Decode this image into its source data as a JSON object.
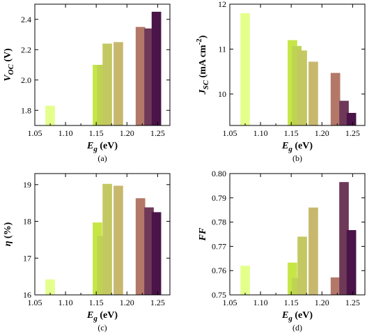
{
  "chart_data": [
    {
      "type": "bar",
      "panel_label": "(a)",
      "xlabel": "E",
      "xlabel_sub": "g",
      "xlabel_unit": " (eV)",
      "ylabel": "V",
      "ylabel_sub": "OC",
      "ylabel_unit": " (V)",
      "xlim": [
        1.05,
        1.27
      ],
      "ylim": [
        1.7,
        2.5
      ],
      "xticks": [
        "1.05",
        "1.10",
        "1.15",
        "1.20",
        "1.25"
      ],
      "yticks": [
        "1.8",
        "2.0",
        "2.2",
        "2.4"
      ],
      "grid": false,
      "bars": [
        {
          "x": 1.075,
          "y": 1.83,
          "color": "#e4ff8c"
        },
        {
          "x": 1.152,
          "y": 2.1,
          "color": "#c6e646"
        },
        {
          "x": 1.159,
          "y": 2.1,
          "color": "#bdd452"
        },
        {
          "x": 1.168,
          "y": 2.24,
          "color": "#c4c862"
        },
        {
          "x": 1.186,
          "y": 2.25,
          "color": "#c7b86e"
        },
        {
          "x": 1.222,
          "y": 2.35,
          "color": "#b37868"
        },
        {
          "x": 1.236,
          "y": 2.34,
          "color": "#6e3858"
        },
        {
          "x": 1.248,
          "y": 2.45,
          "color": "#4a1448"
        }
      ]
    },
    {
      "type": "bar",
      "panel_label": "(b)",
      "xlabel": "E",
      "xlabel_sub": "g",
      "xlabel_unit": " (eV)",
      "ylabel": "J",
      "ylabel_sub": "SC",
      "ylabel_unit": "  (mA cm",
      "ylabel_sup": "-2",
      "ylabel_close": ")",
      "xlim": [
        1.05,
        1.27
      ],
      "ylim": [
        9.3,
        12.0
      ],
      "xticks": [
        "1.05",
        "1.10",
        "1.15",
        "1.20",
        "1.25"
      ],
      "yticks": [
        "10",
        "11",
        "12"
      ],
      "grid": false,
      "bars": [
        {
          "x": 1.075,
          "y": 11.8,
          "color": "#e4ff8c"
        },
        {
          "x": 1.152,
          "y": 11.2,
          "color": "#c6e646"
        },
        {
          "x": 1.159,
          "y": 11.07,
          "color": "#bdd452"
        },
        {
          "x": 1.168,
          "y": 10.97,
          "color": "#c4c862"
        },
        {
          "x": 1.186,
          "y": 10.72,
          "color": "#c7b86e"
        },
        {
          "x": 1.222,
          "y": 10.47,
          "color": "#b37868"
        },
        {
          "x": 1.236,
          "y": 9.85,
          "color": "#6e3858"
        },
        {
          "x": 1.248,
          "y": 9.58,
          "color": "#4a1448"
        }
      ]
    },
    {
      "type": "bar",
      "panel_label": "(c)",
      "xlabel": "E",
      "xlabel_sub": "g",
      "xlabel_unit": " (eV)",
      "ylabel": "η",
      "ylabel_sub": "",
      "ylabel_unit": " (%)",
      "xlim": [
        1.05,
        1.27
      ],
      "ylim": [
        16.0,
        19.3
      ],
      "xticks": [
        "1.05",
        "1.10",
        "1.15",
        "1.20",
        "1.25"
      ],
      "yticks": [
        "16",
        "17",
        "18",
        "19"
      ],
      "grid": false,
      "bars": [
        {
          "x": 1.075,
          "y": 16.42,
          "color": "#e4ff8c"
        },
        {
          "x": 1.152,
          "y": 17.97,
          "color": "#c6e646"
        },
        {
          "x": 1.159,
          "y": 17.6,
          "color": "#bdd452"
        },
        {
          "x": 1.168,
          "y": 19.02,
          "color": "#c4c862"
        },
        {
          "x": 1.186,
          "y": 18.97,
          "color": "#c7b86e"
        },
        {
          "x": 1.222,
          "y": 18.63,
          "color": "#b37868"
        },
        {
          "x": 1.236,
          "y": 18.38,
          "color": "#6e3858"
        },
        {
          "x": 1.248,
          "y": 18.25,
          "color": "#4a1448"
        }
      ]
    },
    {
      "type": "bar",
      "panel_label": "(d)",
      "xlabel": "E",
      "xlabel_sub": "g",
      "xlabel_unit": " (eV)",
      "ylabel": "FF",
      "ylabel_sub": "",
      "ylabel_unit": "",
      "xlim": [
        1.05,
        1.27
      ],
      "ylim": [
        0.75,
        0.8
      ],
      "xticks": [
        "1.05",
        "1.10",
        "1.15",
        "1.20",
        "1.25"
      ],
      "yticks": [
        "0.75",
        "0.76",
        "0.77",
        "0.78",
        "0.79",
        "0.80"
      ],
      "grid": false,
      "bars": [
        {
          "x": 1.075,
          "y": 0.762,
          "color": "#e4ff8c"
        },
        {
          "x": 1.152,
          "y": 0.7633,
          "color": "#c6e646"
        },
        {
          "x": 1.159,
          "y": 0.757,
          "color": "#bdd452"
        },
        {
          "x": 1.168,
          "y": 0.774,
          "color": "#c4c862"
        },
        {
          "x": 1.186,
          "y": 0.786,
          "color": "#c7b86e"
        },
        {
          "x": 1.222,
          "y": 0.7572,
          "color": "#b37868"
        },
        {
          "x": 1.236,
          "y": 0.7965,
          "color": "#6e3858"
        },
        {
          "x": 1.248,
          "y": 0.7767,
          "color": "#4a1448"
        }
      ]
    }
  ]
}
